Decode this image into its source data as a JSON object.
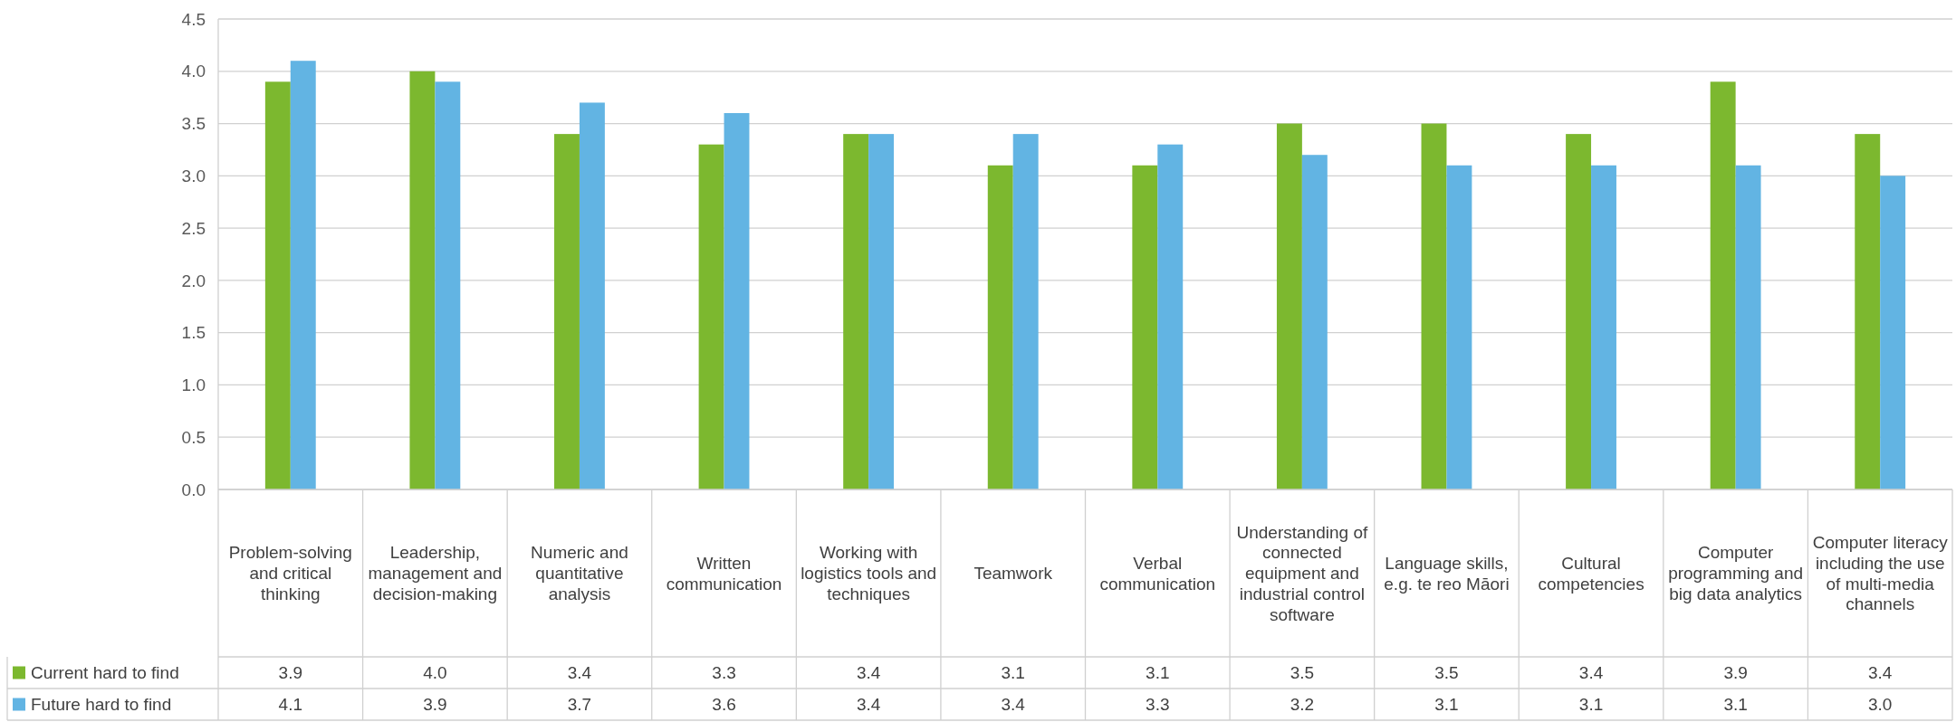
{
  "chart_data": {
    "type": "bar",
    "categories": [
      "Problem-solving and critical thinking",
      "Leadership, management and decision-making",
      "Numeric and quantitative analysis",
      "Written communication",
      "Working with logistics tools and techniques",
      "Teamwork",
      "Verbal communication",
      "Understanding of connected equipment and industrial control software",
      "Language skills, e.g. te reo Māori",
      "Cultural competencies",
      "Computer programming and big data analytics",
      "Computer literacy including the use of multi-media channels"
    ],
    "series": [
      {
        "name": "Current hard to find",
        "color": "#7cb82f",
        "values": [
          3.9,
          4.0,
          3.4,
          3.3,
          3.4,
          3.1,
          3.1,
          3.5,
          3.5,
          3.4,
          3.9,
          3.4
        ],
        "value_labels": [
          "3.9",
          "4.0",
          "3.4",
          "3.3",
          "3.4",
          "3.1",
          "3.1",
          "3.5",
          "3.5",
          "3.4",
          "3.9",
          "3.4"
        ]
      },
      {
        "name": "Future hard to find",
        "color": "#62b4e3",
        "values": [
          4.1,
          3.9,
          3.7,
          3.6,
          3.4,
          3.4,
          3.3,
          3.2,
          3.1,
          3.1,
          3.1,
          3.0
        ],
        "value_labels": [
          "4.1",
          "3.9",
          "3.7",
          "3.6",
          "3.4",
          "3.4",
          "3.3",
          "3.2",
          "3.1",
          "3.1",
          "3.1",
          "3.0"
        ]
      }
    ],
    "ylim": [
      0,
      4.5
    ],
    "yticks": [
      {
        "value": 0,
        "label": "0.0"
      },
      {
        "value": 0.5,
        "label": "0.5"
      },
      {
        "value": 1,
        "label": "1.0"
      },
      {
        "value": 1.5,
        "label": "1.5"
      },
      {
        "value": 2,
        "label": "2.0"
      },
      {
        "value": 2.5,
        "label": "2.5"
      },
      {
        "value": 3,
        "label": "3.0"
      },
      {
        "value": 3.5,
        "label": "3.5"
      },
      {
        "value": 4,
        "label": "4.0"
      },
      {
        "value": 4.5,
        "label": "4.5"
      }
    ],
    "grid": "y",
    "legend": "bottom left"
  }
}
